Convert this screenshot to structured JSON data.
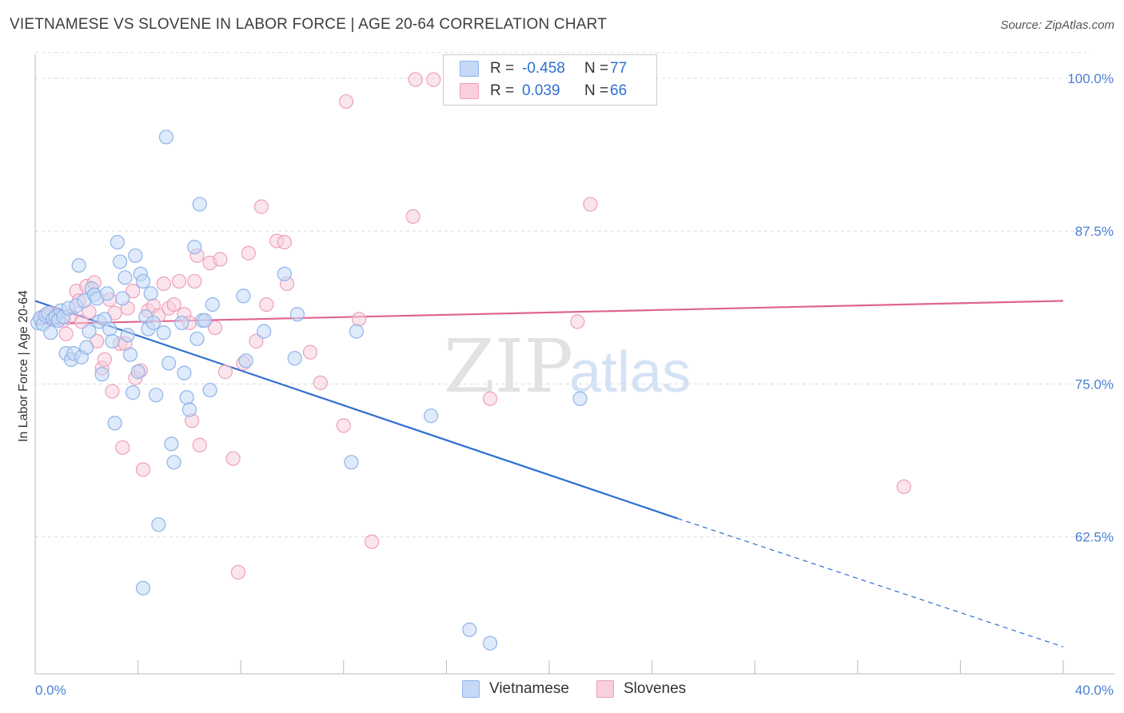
{
  "title": "VIETNAMESE VS SLOVENE IN LABOR FORCE | AGE 20-64 CORRELATION CHART",
  "source": "Source: ZipAtlas.com",
  "watermark": {
    "zip": "ZIP",
    "atlas": "atlas"
  },
  "legend": {
    "rows": [
      {
        "r_label": "R =",
        "r_value": "-0.458",
        "n_label": "N =",
        "n_value": "77",
        "color": "#8fb4ea",
        "fill": "#c5d8f5"
      },
      {
        "r_label": "R =",
        "r_value": "0.039",
        "n_label": "N =",
        "n_value": "66",
        "color": "#eea0bb",
        "fill": "#f8cfdd"
      }
    ]
  },
  "bottom_legend": {
    "a": "Vietnamese",
    "b": "Slovenes"
  },
  "chart_data": {
    "type": "scatter",
    "title": "VIETNAMESE VS SLOVENE IN LABOR FORCE | AGE 20-64 CORRELATION CHART",
    "xlabel": "",
    "ylabel": "In Labor Force | Age 20-64",
    "xlim": [
      0,
      40
    ],
    "ylim": [
      52.6,
      101.2
    ],
    "x_ticks": [
      "0.0%",
      "40.0%"
    ],
    "y_ticks": [
      {
        "value": 100,
        "label": "100.0%"
      },
      {
        "value": 87.5,
        "label": "87.5%"
      },
      {
        "value": 75,
        "label": "75.0%"
      },
      {
        "value": 62.5,
        "label": "62.5%"
      }
    ],
    "grid": "horizontal dashed",
    "series": [
      {
        "name": "Vietnamese",
        "color": "#8fb4ea",
        "fill": "#c5d8f5",
        "trend": {
          "x0": 0,
          "y0": 81.8,
          "x1": 25.0,
          "y1": 64.0,
          "dash_to_x": 40,
          "dash_to_y": 53.5,
          "color": "#2f6fd1"
        },
        "points": [
          [
            0.1,
            80.0
          ],
          [
            0.2,
            80.4
          ],
          [
            0.3,
            79.9
          ],
          [
            0.4,
            80.6
          ],
          [
            0.5,
            80.8
          ],
          [
            0.6,
            79.2
          ],
          [
            0.7,
            80.3
          ],
          [
            0.8,
            80.5
          ],
          [
            0.9,
            80.2
          ],
          [
            1.0,
            81.0
          ],
          [
            1.1,
            80.5
          ],
          [
            1.2,
            77.5
          ],
          [
            1.3,
            81.2
          ],
          [
            1.4,
            77.0
          ],
          [
            1.5,
            77.5
          ],
          [
            1.6,
            81.4
          ],
          [
            1.7,
            84.7
          ],
          [
            1.8,
            77.2
          ],
          [
            1.9,
            81.8
          ],
          [
            2.0,
            78.0
          ],
          [
            2.1,
            79.3
          ],
          [
            2.2,
            82.8
          ],
          [
            2.3,
            82.3
          ],
          [
            2.4,
            82.0
          ],
          [
            2.5,
            80.1
          ],
          [
            2.6,
            75.8
          ],
          [
            2.7,
            80.3
          ],
          [
            2.8,
            82.4
          ],
          [
            2.9,
            79.5
          ],
          [
            3.0,
            78.5
          ],
          [
            3.1,
            71.8
          ],
          [
            3.2,
            86.6
          ],
          [
            3.3,
            85.0
          ],
          [
            3.4,
            82.0
          ],
          [
            3.5,
            83.7
          ],
          [
            3.6,
            79.0
          ],
          [
            3.7,
            77.4
          ],
          [
            3.8,
            74.3
          ],
          [
            3.9,
            85.5
          ],
          [
            4.0,
            76.0
          ],
          [
            4.1,
            84.0
          ],
          [
            4.2,
            83.4
          ],
          [
            4.3,
            80.5
          ],
          [
            4.4,
            79.5
          ],
          [
            4.5,
            82.4
          ],
          [
            4.6,
            80.0
          ],
          [
            4.7,
            74.1
          ],
          [
            4.8,
            63.5
          ],
          [
            5.0,
            79.2
          ],
          [
            5.1,
            95.2
          ],
          [
            5.2,
            76.7
          ],
          [
            5.3,
            70.1
          ],
          [
            5.4,
            68.6
          ],
          [
            5.7,
            80.0
          ],
          [
            5.8,
            75.9
          ],
          [
            5.9,
            73.9
          ],
          [
            6.0,
            72.9
          ],
          [
            6.2,
            86.2
          ],
          [
            6.3,
            78.7
          ],
          [
            6.4,
            89.7
          ],
          [
            6.5,
            80.2
          ],
          [
            6.6,
            80.2
          ],
          [
            6.8,
            74.5
          ],
          [
            6.9,
            81.5
          ],
          [
            8.1,
            82.2
          ],
          [
            8.2,
            76.9
          ],
          [
            8.9,
            79.3
          ],
          [
            9.7,
            84.0
          ],
          [
            10.2,
            80.7
          ],
          [
            10.1,
            77.1
          ],
          [
            12.5,
            79.3
          ],
          [
            12.3,
            68.6
          ],
          [
            15.4,
            72.4
          ],
          [
            16.9,
            54.9
          ],
          [
            17.7,
            53.8
          ],
          [
            21.2,
            73.8
          ],
          [
            4.2,
            58.3
          ]
        ]
      },
      {
        "name": "Slovenes",
        "color": "#eea0bb",
        "fill": "#f8cfdd",
        "trend": {
          "x0": 0,
          "y0": 79.9,
          "x1": 40,
          "y1": 81.8,
          "color": "#e0648f"
        },
        "points": [
          [
            0.3,
            80.5
          ],
          [
            0.6,
            80.8
          ],
          [
            0.8,
            80.6
          ],
          [
            1.1,
            80.2
          ],
          [
            1.2,
            79.1
          ],
          [
            1.4,
            80.6
          ],
          [
            1.6,
            82.6
          ],
          [
            1.7,
            81.8
          ],
          [
            1.8,
            80.1
          ],
          [
            2.0,
            83.0
          ],
          [
            2.1,
            80.9
          ],
          [
            2.3,
            83.3
          ],
          [
            2.4,
            78.5
          ],
          [
            2.6,
            76.3
          ],
          [
            2.7,
            77.0
          ],
          [
            2.9,
            81.9
          ],
          [
            3.0,
            74.4
          ],
          [
            3.1,
            80.8
          ],
          [
            3.3,
            78.3
          ],
          [
            3.4,
            69.8
          ],
          [
            3.5,
            78.3
          ],
          [
            3.6,
            81.2
          ],
          [
            3.8,
            82.6
          ],
          [
            3.9,
            75.5
          ],
          [
            4.1,
            76.1
          ],
          [
            4.2,
            68.0
          ],
          [
            4.4,
            81.0
          ],
          [
            4.6,
            81.4
          ],
          [
            4.8,
            80.6
          ],
          [
            5.0,
            83.2
          ],
          [
            5.2,
            81.2
          ],
          [
            5.4,
            81.5
          ],
          [
            5.6,
            83.4
          ],
          [
            5.8,
            80.7
          ],
          [
            6.0,
            80.0
          ],
          [
            6.1,
            72.0
          ],
          [
            6.2,
            83.4
          ],
          [
            6.3,
            85.5
          ],
          [
            6.4,
            70.0
          ],
          [
            6.8,
            84.9
          ],
          [
            7.0,
            79.6
          ],
          [
            7.2,
            85.2
          ],
          [
            7.4,
            76.0
          ],
          [
            7.7,
            68.9
          ],
          [
            7.9,
            59.6
          ],
          [
            8.1,
            76.7
          ],
          [
            8.3,
            85.7
          ],
          [
            8.6,
            78.5
          ],
          [
            8.8,
            89.5
          ],
          [
            9.0,
            81.5
          ],
          [
            9.4,
            86.7
          ],
          [
            9.7,
            86.6
          ],
          [
            9.8,
            83.2
          ],
          [
            10.7,
            77.6
          ],
          [
            11.1,
            75.1
          ],
          [
            12.0,
            71.6
          ],
          [
            12.1,
            98.1
          ],
          [
            12.6,
            80.3
          ],
          [
            13.1,
            62.1
          ],
          [
            14.8,
            99.9
          ],
          [
            14.7,
            88.7
          ],
          [
            15.5,
            99.9
          ],
          [
            17.7,
            73.8
          ],
          [
            21.1,
            80.1
          ],
          [
            21.6,
            89.7
          ],
          [
            33.8,
            66.6
          ]
        ]
      }
    ]
  }
}
